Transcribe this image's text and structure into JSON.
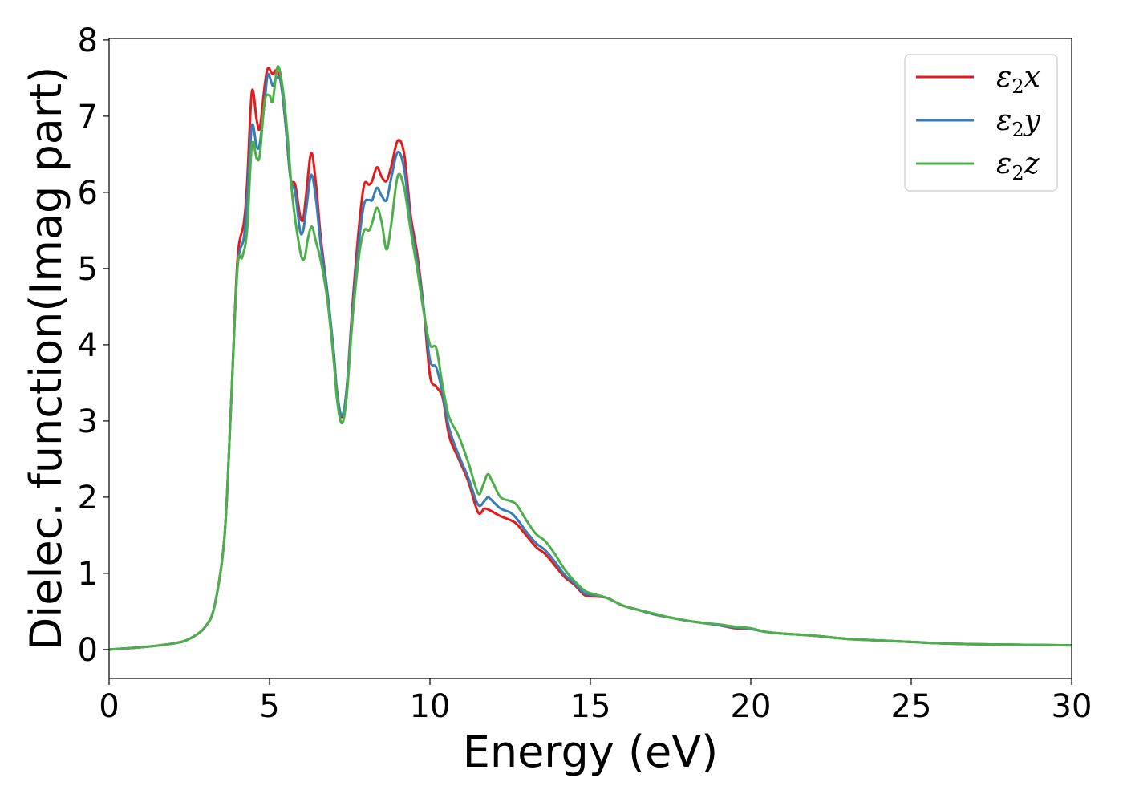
{
  "chart_data": {
    "type": "line",
    "xlabel": "Energy (eV)",
    "ylabel": "Dielec. function(Imag part)",
    "xlim": [
      0,
      30
    ],
    "ylim": [
      -0.38,
      8.02
    ],
    "xticks": [
      0,
      5,
      10,
      15,
      20,
      25,
      30
    ],
    "yticks": [
      0,
      1,
      2,
      3,
      4,
      5,
      6,
      7,
      8
    ],
    "grid": false,
    "legend_position": "top-right",
    "series": [
      {
        "name": "ε2x",
        "legend": {
          "base": "ε",
          "sub": "2",
          "tail": "x"
        },
        "color": "#e41a1c",
        "points": [
          [
            0,
            0
          ],
          [
            1,
            0.03
          ],
          [
            2,
            0.08
          ],
          [
            2.5,
            0.14
          ],
          [
            3,
            0.3
          ],
          [
            3.3,
            0.6
          ],
          [
            3.6,
            1.5
          ],
          [
            3.8,
            3.2
          ],
          [
            4,
            5.1
          ],
          [
            4.2,
            5.6
          ],
          [
            4.3,
            6.1
          ],
          [
            4.45,
            7.32
          ],
          [
            4.6,
            6.95
          ],
          [
            4.7,
            6.85
          ],
          [
            4.85,
            7.4
          ],
          [
            4.95,
            7.63
          ],
          [
            5.1,
            7.55
          ],
          [
            5.2,
            7.6
          ],
          [
            5.35,
            7.45
          ],
          [
            5.5,
            6.9
          ],
          [
            5.65,
            6.2
          ],
          [
            5.8,
            6.1
          ],
          [
            5.95,
            5.7
          ],
          [
            6.05,
            5.65
          ],
          [
            6.15,
            6.0
          ],
          [
            6.3,
            6.52
          ],
          [
            6.45,
            6.1
          ],
          [
            6.6,
            5.4
          ],
          [
            6.8,
            4.7
          ],
          [
            7.0,
            3.9
          ],
          [
            7.1,
            3.4
          ],
          [
            7.25,
            3.05
          ],
          [
            7.4,
            3.4
          ],
          [
            7.6,
            4.6
          ],
          [
            7.8,
            5.6
          ],
          [
            7.95,
            6.1
          ],
          [
            8.1,
            6.1
          ],
          [
            8.2,
            6.15
          ],
          [
            8.35,
            6.33
          ],
          [
            8.5,
            6.2
          ],
          [
            8.65,
            6.15
          ],
          [
            8.8,
            6.35
          ],
          [
            9.0,
            6.68
          ],
          [
            9.2,
            6.5
          ],
          [
            9.4,
            5.7
          ],
          [
            9.6,
            5.2
          ],
          [
            9.8,
            4.5
          ],
          [
            10.0,
            3.6
          ],
          [
            10.2,
            3.45
          ],
          [
            10.4,
            3.3
          ],
          [
            10.6,
            2.8
          ],
          [
            10.9,
            2.5
          ],
          [
            11.2,
            2.2
          ],
          [
            11.5,
            1.8
          ],
          [
            11.7,
            1.85
          ],
          [
            11.9,
            1.82
          ],
          [
            12.2,
            1.75
          ],
          [
            12.5,
            1.7
          ],
          [
            12.7,
            1.65
          ],
          [
            13.0,
            1.5
          ],
          [
            13.3,
            1.35
          ],
          [
            13.6,
            1.25
          ],
          [
            13.9,
            1.1
          ],
          [
            14.2,
            0.95
          ],
          [
            14.5,
            0.85
          ],
          [
            14.8,
            0.72
          ],
          [
            15.0,
            0.7
          ],
          [
            15.5,
            0.68
          ],
          [
            16.0,
            0.58
          ],
          [
            16.5,
            0.52
          ],
          [
            17.0,
            0.46
          ],
          [
            17.5,
            0.42
          ],
          [
            18.0,
            0.38
          ],
          [
            18.5,
            0.35
          ],
          [
            19.0,
            0.32
          ],
          [
            19.5,
            0.28
          ],
          [
            20.0,
            0.27
          ],
          [
            20.5,
            0.23
          ],
          [
            21.0,
            0.21
          ],
          [
            22.0,
            0.18
          ],
          [
            23.0,
            0.14
          ],
          [
            24.0,
            0.12
          ],
          [
            25.0,
            0.1
          ],
          [
            26.0,
            0.08
          ],
          [
            27.0,
            0.07
          ],
          [
            28.0,
            0.065
          ],
          [
            29.0,
            0.06
          ],
          [
            30.0,
            0.055
          ]
        ]
      },
      {
        "name": "ε2y",
        "legend": {
          "base": "ε",
          "sub": "2",
          "tail": "y"
        },
        "color": "#377eb8",
        "points": [
          [
            0,
            0
          ],
          [
            1,
            0.03
          ],
          [
            2,
            0.08
          ],
          [
            2.5,
            0.14
          ],
          [
            3,
            0.3
          ],
          [
            3.3,
            0.6
          ],
          [
            3.6,
            1.5
          ],
          [
            3.8,
            3.2
          ],
          [
            4,
            5.0
          ],
          [
            4.2,
            5.4
          ],
          [
            4.3,
            5.9
          ],
          [
            4.45,
            6.87
          ],
          [
            4.6,
            6.6
          ],
          [
            4.7,
            6.65
          ],
          [
            4.85,
            7.2
          ],
          [
            4.95,
            7.55
          ],
          [
            5.1,
            7.4
          ],
          [
            5.2,
            7.5
          ],
          [
            5.35,
            7.45
          ],
          [
            5.5,
            6.9
          ],
          [
            5.65,
            6.2
          ],
          [
            5.8,
            6.0
          ],
          [
            5.95,
            5.5
          ],
          [
            6.05,
            5.5
          ],
          [
            6.15,
            5.8
          ],
          [
            6.3,
            6.23
          ],
          [
            6.45,
            5.9
          ],
          [
            6.6,
            5.3
          ],
          [
            6.8,
            4.7
          ],
          [
            7.0,
            3.9
          ],
          [
            7.1,
            3.4
          ],
          [
            7.25,
            3.07
          ],
          [
            7.4,
            3.4
          ],
          [
            7.6,
            4.5
          ],
          [
            7.8,
            5.4
          ],
          [
            7.95,
            5.85
          ],
          [
            8.1,
            5.9
          ],
          [
            8.2,
            5.9
          ],
          [
            8.35,
            6.06
          ],
          [
            8.5,
            5.95
          ],
          [
            8.65,
            5.9
          ],
          [
            8.8,
            6.2
          ],
          [
            9.0,
            6.53
          ],
          [
            9.2,
            6.3
          ],
          [
            9.4,
            5.6
          ],
          [
            9.6,
            5.1
          ],
          [
            9.8,
            4.5
          ],
          [
            10.0,
            3.8
          ],
          [
            10.2,
            3.7
          ],
          [
            10.4,
            3.35
          ],
          [
            10.6,
            2.9
          ],
          [
            10.9,
            2.55
          ],
          [
            11.2,
            2.25
          ],
          [
            11.5,
            1.9
          ],
          [
            11.7,
            1.95
          ],
          [
            11.8,
            2.0
          ],
          [
            11.9,
            1.97
          ],
          [
            12.2,
            1.85
          ],
          [
            12.5,
            1.8
          ],
          [
            12.7,
            1.72
          ],
          [
            13.0,
            1.55
          ],
          [
            13.3,
            1.4
          ],
          [
            13.6,
            1.3
          ],
          [
            13.9,
            1.15
          ],
          [
            14.2,
            0.98
          ],
          [
            14.5,
            0.87
          ],
          [
            14.8,
            0.74
          ],
          [
            15.0,
            0.72
          ],
          [
            15.5,
            0.68
          ],
          [
            16.0,
            0.58
          ],
          [
            16.5,
            0.52
          ],
          [
            17.0,
            0.46
          ],
          [
            17.5,
            0.42
          ],
          [
            18.0,
            0.38
          ],
          [
            18.5,
            0.35
          ],
          [
            19.0,
            0.32
          ],
          [
            19.5,
            0.29
          ],
          [
            20.0,
            0.27
          ],
          [
            20.5,
            0.23
          ],
          [
            21.0,
            0.21
          ],
          [
            22.0,
            0.18
          ],
          [
            23.0,
            0.14
          ],
          [
            24.0,
            0.12
          ],
          [
            25.0,
            0.1
          ],
          [
            26.0,
            0.08
          ],
          [
            27.0,
            0.07
          ],
          [
            28.0,
            0.065
          ],
          [
            29.0,
            0.06
          ],
          [
            30.0,
            0.055
          ]
        ]
      },
      {
        "name": "ε2z",
        "legend": {
          "base": "ε",
          "sub": "2",
          "tail": "z"
        },
        "color": "#4daf4a",
        "points": [
          [
            0,
            0
          ],
          [
            1,
            0.03
          ],
          [
            2,
            0.08
          ],
          [
            2.5,
            0.14
          ],
          [
            3,
            0.3
          ],
          [
            3.3,
            0.6
          ],
          [
            3.6,
            1.5
          ],
          [
            3.8,
            3.2
          ],
          [
            4,
            5.0
          ],
          [
            4.15,
            5.15
          ],
          [
            4.3,
            5.5
          ],
          [
            4.45,
            6.62
          ],
          [
            4.6,
            6.45
          ],
          [
            4.7,
            6.5
          ],
          [
            4.85,
            7.2
          ],
          [
            5.0,
            7.27
          ],
          [
            5.1,
            7.2
          ],
          [
            5.25,
            7.65
          ],
          [
            5.4,
            7.4
          ],
          [
            5.55,
            6.8
          ],
          [
            5.7,
            6.0
          ],
          [
            5.85,
            5.5
          ],
          [
            6.0,
            5.15
          ],
          [
            6.1,
            5.15
          ],
          [
            6.2,
            5.4
          ],
          [
            6.32,
            5.55
          ],
          [
            6.45,
            5.35
          ],
          [
            6.6,
            5.1
          ],
          [
            6.8,
            4.6
          ],
          [
            7.0,
            3.8
          ],
          [
            7.1,
            3.3
          ],
          [
            7.25,
            2.97
          ],
          [
            7.4,
            3.3
          ],
          [
            7.6,
            4.4
          ],
          [
            7.8,
            5.2
          ],
          [
            7.95,
            5.5
          ],
          [
            8.1,
            5.5
          ],
          [
            8.2,
            5.6
          ],
          [
            8.35,
            5.8
          ],
          [
            8.5,
            5.6
          ],
          [
            8.65,
            5.25
          ],
          [
            8.8,
            5.6
          ],
          [
            9.0,
            6.22
          ],
          [
            9.2,
            6.05
          ],
          [
            9.4,
            5.5
          ],
          [
            9.6,
            5.0
          ],
          [
            9.8,
            4.45
          ],
          [
            10.0,
            4.0
          ],
          [
            10.2,
            3.95
          ],
          [
            10.4,
            3.45
          ],
          [
            10.6,
            3.05
          ],
          [
            10.9,
            2.8
          ],
          [
            11.2,
            2.45
          ],
          [
            11.5,
            2.05
          ],
          [
            11.65,
            2.15
          ],
          [
            11.8,
            2.3
          ],
          [
            11.95,
            2.2
          ],
          [
            12.2,
            2.0
          ],
          [
            12.5,
            1.95
          ],
          [
            12.7,
            1.9
          ],
          [
            13.0,
            1.7
          ],
          [
            13.3,
            1.52
          ],
          [
            13.6,
            1.42
          ],
          [
            13.9,
            1.25
          ],
          [
            14.2,
            1.05
          ],
          [
            14.5,
            0.9
          ],
          [
            14.8,
            0.78
          ],
          [
            15.0,
            0.74
          ],
          [
            15.5,
            0.68
          ],
          [
            16.0,
            0.58
          ],
          [
            16.5,
            0.52
          ],
          [
            17.0,
            0.47
          ],
          [
            17.5,
            0.42
          ],
          [
            18.0,
            0.38
          ],
          [
            18.5,
            0.35
          ],
          [
            19.0,
            0.33
          ],
          [
            19.5,
            0.3
          ],
          [
            20.0,
            0.28
          ],
          [
            20.5,
            0.23
          ],
          [
            21.0,
            0.21
          ],
          [
            22.0,
            0.18
          ],
          [
            23.0,
            0.14
          ],
          [
            24.0,
            0.12
          ],
          [
            25.0,
            0.1
          ],
          [
            26.0,
            0.08
          ],
          [
            27.0,
            0.07
          ],
          [
            28.0,
            0.065
          ],
          [
            29.0,
            0.06
          ],
          [
            30.0,
            0.055
          ]
        ]
      }
    ]
  }
}
